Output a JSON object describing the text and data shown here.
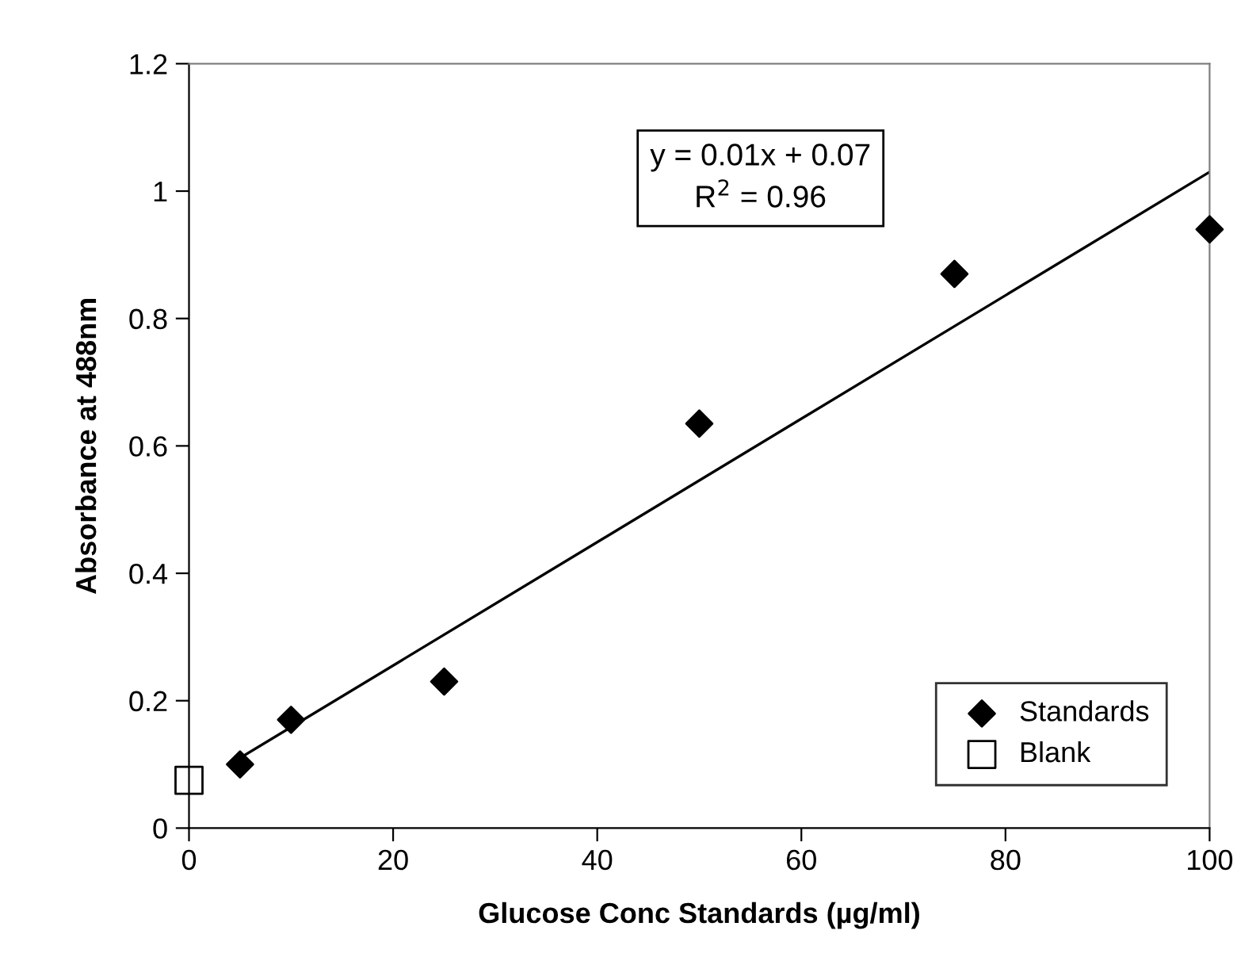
{
  "chart_data": {
    "type": "scatter",
    "xlabel": "Glucose Conc Standards (µg/ml)",
    "ylabel": "Absorbance at 488nm",
    "series": [
      {
        "name": "Standards",
        "marker": "diamond",
        "color": "#000000",
        "x": [
          5,
          10,
          25,
          50,
          75,
          100
        ],
        "values": [
          0.1,
          0.17,
          0.23,
          0.635,
          0.87,
          0.94
        ]
      },
      {
        "name": "Blank",
        "marker": "square",
        "color": "#000000",
        "x": [
          0
        ],
        "values": [
          0.075
        ]
      },
      {
        "type": "line",
        "color": "#000000",
        "x": [
          5,
          100
        ],
        "values": [
          0.11,
          1.03
        ]
      }
    ],
    "annotations": [
      "y = 0.01x + 0.07\nR$^{2}$ = 0.96"
    ],
    "xlim": [
      0,
      100
    ],
    "xticks": [
      0,
      20,
      40,
      60,
      80,
      100
    ],
    "ylim": [
      0,
      1.2
    ],
    "yticks": [
      0,
      0.2,
      0.4,
      0.6,
      0.8,
      1,
      1.2
    ],
    "grid": false,
    "legend": "bottom right"
  }
}
